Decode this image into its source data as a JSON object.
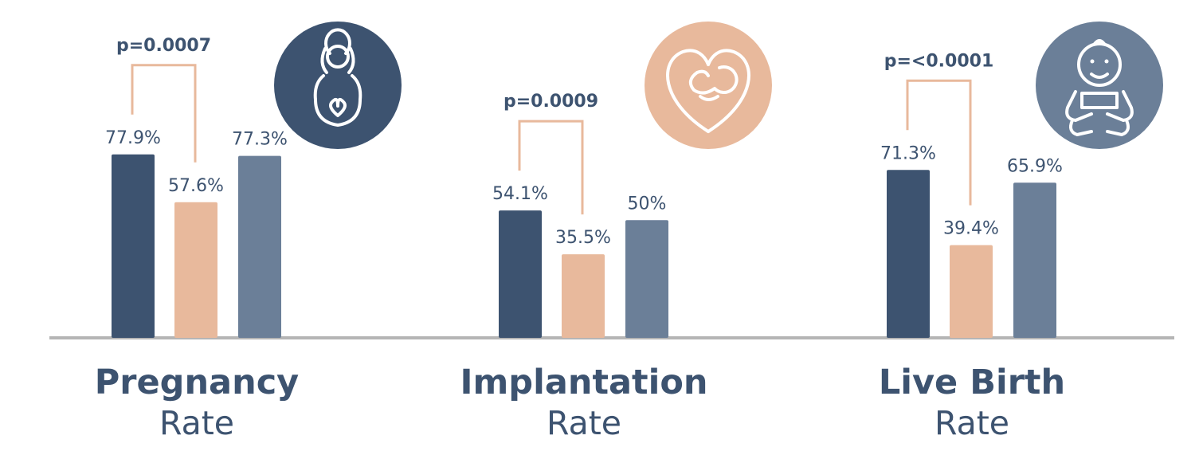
{
  "chart_data": {
    "type": "bar",
    "title": "",
    "xlabel": "",
    "ylabel": "",
    "ylim": [
      0,
      100
    ],
    "groups": [
      {
        "title_bold": "Pregnancy",
        "title_light": "Rate",
        "icon": "pregnant-woman-icon",
        "values": [
          77.9,
          57.6,
          77.3
        ],
        "value_labels": [
          "77.9%",
          "57.6%",
          "77.3%"
        ],
        "p_value": "p=0.0007"
      },
      {
        "title_bold": "Implantation",
        "title_light": "Rate",
        "icon": "fetus-in-womb-icon",
        "values": [
          54.1,
          35.5,
          50
        ],
        "value_labels": [
          "54.1%",
          "35.5%",
          "50%"
        ],
        "p_value": "p=0.0009"
      },
      {
        "title_bold": "Live Birth",
        "title_light": "Rate",
        "icon": "baby-icon",
        "values": [
          71.3,
          39.4,
          65.9
        ],
        "value_labels": [
          "71.3%",
          "39.4%",
          "65.9%"
        ],
        "p_value": "p=<0.0001"
      }
    ],
    "colors": {
      "bar_series": [
        "#3d5370",
        "#e8b99c",
        "#6b7f98"
      ],
      "icon_circles": [
        "#3d5370",
        "#e8b99c",
        "#6b7f98"
      ],
      "bracket": "#e8b99c",
      "axis": "#b5b5b5",
      "text": "#3d5370"
    }
  }
}
